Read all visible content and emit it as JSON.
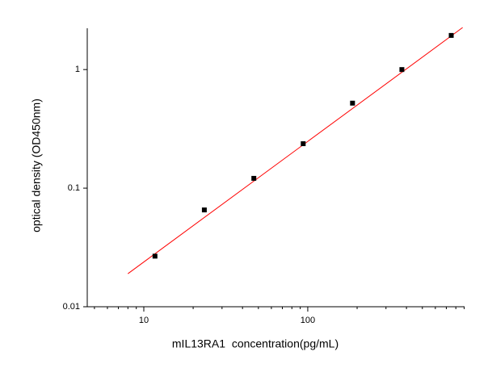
{
  "chart_data": {
    "type": "scatter",
    "x_label": "mIL13RA1  concentration(pg/mL)",
    "y_label": "optical density (OD450nm)",
    "xscale": "log",
    "yscale": "log",
    "xlim": [
      4.52,
      904
    ],
    "ylim": [
      0.01,
      2.23
    ],
    "xticks": [
      10,
      100
    ],
    "xminor": [
      5,
      6,
      7,
      8,
      9,
      20,
      30,
      40,
      50,
      60,
      70,
      80,
      90,
      200,
      300,
      400,
      500,
      600,
      700,
      800,
      900
    ],
    "yticks": [
      0.01,
      0.1,
      1
    ],
    "series": [
      {
        "color": "#000000",
        "x": [
          11.7,
          23.4,
          46.9,
          93.8,
          187.5,
          375,
          750
        ],
        "values": [
          0.0267,
          0.0655,
          0.121,
          0.237,
          0.521,
          1.0,
          1.94
        ]
      }
    ],
    "fit": {
      "color": "#ff0000",
      "x": [
        8,
        880
      ],
      "values": [
        0.019,
        2.26
      ]
    }
  }
}
